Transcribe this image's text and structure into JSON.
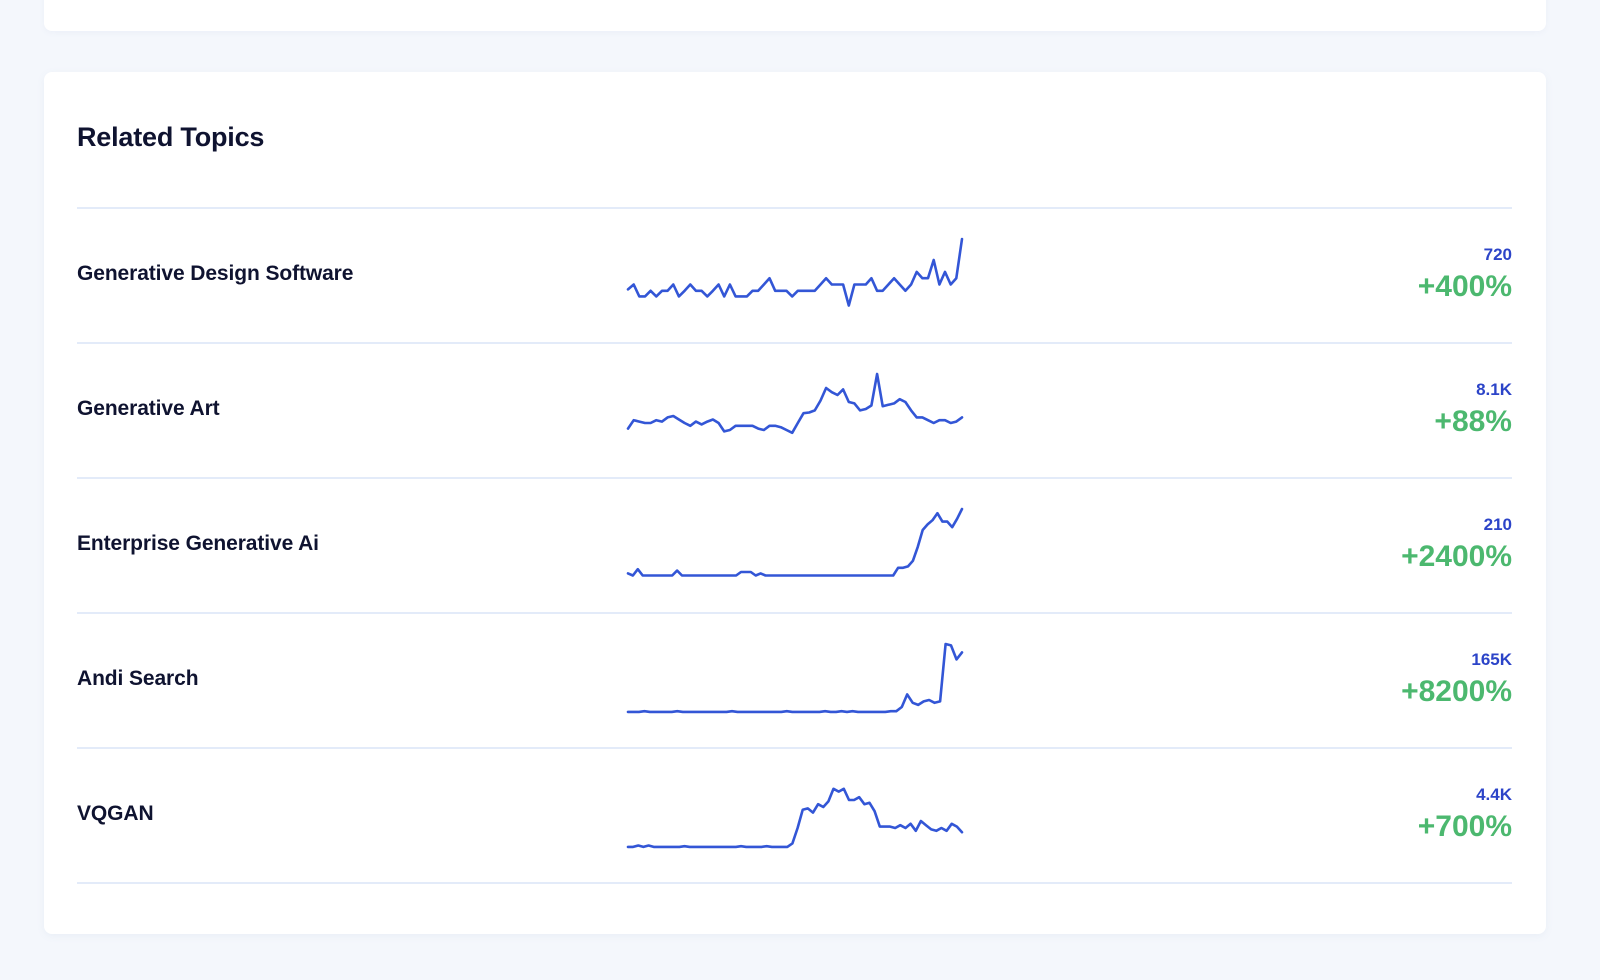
{
  "colors": {
    "background": "#f4f7fc",
    "card": "#ffffff",
    "title": "#0f1330",
    "divider": "#e3ebf9",
    "sparkline": "#3356d6",
    "volume": "#2c44c8",
    "growth": "#4cb86f"
  },
  "related_topics": {
    "title": "Related Topics",
    "items": [
      {
        "name": "Generative Design Software",
        "volume": "720",
        "growth": "+400%",
        "sparkline": [
          28,
          35,
          18,
          18,
          26,
          18,
          26,
          26,
          35,
          18,
          26,
          35,
          26,
          26,
          18,
          26,
          35,
          18,
          35,
          18,
          18,
          18,
          26,
          26,
          35,
          44,
          26,
          26,
          26,
          18,
          26,
          26,
          26,
          26,
          35,
          44,
          35,
          35,
          35,
          5,
          35,
          35,
          35,
          44,
          26,
          26,
          35,
          44,
          35,
          26,
          35,
          53,
          44,
          44,
          70,
          35,
          53,
          35,
          44,
          100
        ]
      },
      {
        "name": "Generative Art",
        "volume": "8.1K",
        "growth": "+88%",
        "sparkline": [
          22,
          34,
          32,
          30,
          30,
          34,
          32,
          38,
          40,
          35,
          30,
          26,
          32,
          28,
          32,
          35,
          30,
          18,
          20,
          26,
          26,
          26,
          26,
          22,
          20,
          26,
          26,
          24,
          20,
          16,
          30,
          44,
          45,
          48,
          62,
          80,
          74,
          70,
          78,
          60,
          58,
          48,
          50,
          55,
          100,
          54,
          56,
          58,
          64,
          60,
          48,
          38,
          38,
          34,
          30,
          34,
          34,
          30,
          32,
          38
        ]
      },
      {
        "name": "Enterprise Generative Ai",
        "volume": "210",
        "growth": "+2400%",
        "sparkline": [
          8,
          5,
          14,
          5,
          5,
          5,
          5,
          5,
          5,
          5,
          12,
          5,
          5,
          5,
          5,
          5,
          5,
          5,
          5,
          5,
          5,
          5,
          5,
          10,
          10,
          10,
          5,
          8,
          5,
          5,
          5,
          5,
          5,
          5,
          5,
          5,
          5,
          5,
          5,
          5,
          5,
          5,
          5,
          5,
          5,
          5,
          5,
          5,
          5,
          5,
          5,
          5,
          5,
          5,
          5,
          16,
          16,
          18,
          26,
          46,
          70,
          78,
          84,
          94,
          82,
          82,
          74,
          86,
          100
        ]
      },
      {
        "name": "Andi Search",
        "volume": "165K",
        "growth": "+8200%",
        "sparkline": [
          3,
          3,
          3,
          4,
          3,
          3,
          3,
          3,
          3,
          4,
          3,
          3,
          3,
          3,
          3,
          3,
          3,
          3,
          3,
          4,
          3,
          3,
          3,
          3,
          3,
          3,
          3,
          3,
          3,
          4,
          3,
          3,
          3,
          3,
          3,
          3,
          4,
          3,
          3,
          4,
          3,
          4,
          3,
          3,
          3,
          3,
          3,
          3,
          4,
          4,
          10,
          28,
          16,
          13,
          18,
          20,
          16,
          18,
          100,
          98,
          78,
          88
        ]
      },
      {
        "name": "VQGAN",
        "volume": "4.4K",
        "growth": "+700%",
        "sparkline": [
          3,
          3,
          5,
          3,
          5,
          3,
          3,
          3,
          3,
          3,
          3,
          4,
          3,
          3,
          3,
          3,
          3,
          3,
          3,
          3,
          3,
          3,
          4,
          3,
          3,
          3,
          3,
          4,
          3,
          3,
          3,
          3,
          8,
          30,
          56,
          58,
          52,
          64,
          60,
          68,
          86,
          82,
          86,
          70,
          70,
          74,
          64,
          66,
          54,
          32,
          32,
          32,
          30,
          34,
          30,
          36,
          26,
          40,
          34,
          28,
          26,
          30,
          26,
          36,
          32,
          24
        ]
      }
    ]
  }
}
